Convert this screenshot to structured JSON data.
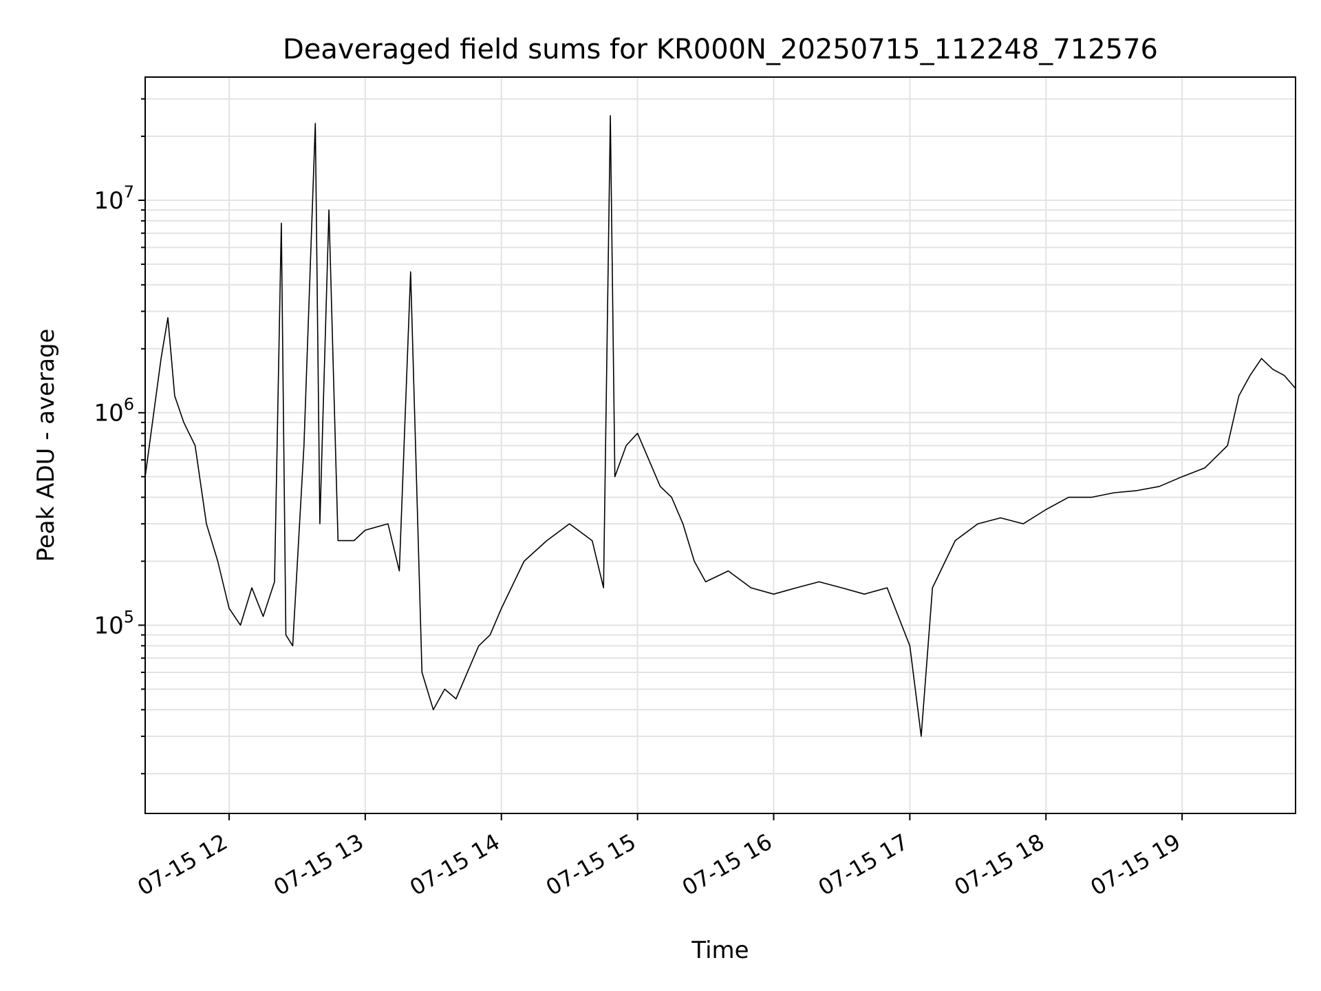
{
  "chart_data": {
    "type": "line",
    "title": "Deaveraged field sums for KR000N_20250715_112248_712576",
    "xlabel": "Time",
    "ylabel": "Peak ADU - average",
    "x_ticks": [
      "07-15 12",
      "07-15 13",
      "07-15 14",
      "07-15 15",
      "07-15 16",
      "07-15 17",
      "07-15 18",
      "07-15 19"
    ],
    "y_ticks": [
      {
        "base": "10",
        "exp": "5",
        "value": 100000
      },
      {
        "base": "10",
        "exp": "6",
        "value": 1000000
      },
      {
        "base": "10",
        "exp": "7",
        "value": 10000000
      }
    ],
    "xlim": [
      "2025-07-15 11:23",
      "2025-07-15 19:50"
    ],
    "ylim": [
      13000,
      38000000
    ],
    "yscale": "log",
    "grid": true,
    "line_color": "#000000",
    "series": [
      {
        "x": [
          "2025-07-15 11:23",
          "2025-07-15 11:30",
          "2025-07-15 11:33",
          "2025-07-15 11:36",
          "2025-07-15 11:40",
          "2025-07-15 11:45",
          "2025-07-15 11:50",
          "2025-07-15 11:55",
          "2025-07-15 12:00",
          "2025-07-15 12:05",
          "2025-07-15 12:10",
          "2025-07-15 12:15",
          "2025-07-15 12:20",
          "2025-07-15 12:23",
          "2025-07-15 12:25",
          "2025-07-15 12:28",
          "2025-07-15 12:33",
          "2025-07-15 12:38",
          "2025-07-15 12:40",
          "2025-07-15 12:44",
          "2025-07-15 12:48",
          "2025-07-15 12:55",
          "2025-07-15 13:00",
          "2025-07-15 13:10",
          "2025-07-15 13:15",
          "2025-07-15 13:20",
          "2025-07-15 13:25",
          "2025-07-15 13:30",
          "2025-07-15 13:35",
          "2025-07-15 13:40",
          "2025-07-15 13:45",
          "2025-07-15 13:50",
          "2025-07-15 13:55",
          "2025-07-15 14:00",
          "2025-07-15 14:10",
          "2025-07-15 14:20",
          "2025-07-15 14:30",
          "2025-07-15 14:40",
          "2025-07-15 14:45",
          "2025-07-15 14:48",
          "2025-07-15 14:50",
          "2025-07-15 14:55",
          "2025-07-15 15:00",
          "2025-07-15 15:05",
          "2025-07-15 15:10",
          "2025-07-15 15:15",
          "2025-07-15 15:20",
          "2025-07-15 15:25",
          "2025-07-15 15:30",
          "2025-07-15 15:40",
          "2025-07-15 15:50",
          "2025-07-15 16:00",
          "2025-07-15 16:10",
          "2025-07-15 16:20",
          "2025-07-15 16:30",
          "2025-07-15 16:40",
          "2025-07-15 16:50",
          "2025-07-15 17:00",
          "2025-07-15 17:05",
          "2025-07-15 17:10",
          "2025-07-15 17:20",
          "2025-07-15 17:30",
          "2025-07-15 17:40",
          "2025-07-15 17:50",
          "2025-07-15 18:00",
          "2025-07-15 18:10",
          "2025-07-15 18:20",
          "2025-07-15 18:30",
          "2025-07-15 18:40",
          "2025-07-15 18:50",
          "2025-07-15 19:00",
          "2025-07-15 19:10",
          "2025-07-15 19:20",
          "2025-07-15 19:25",
          "2025-07-15 19:30",
          "2025-07-15 19:35",
          "2025-07-15 19:40",
          "2025-07-15 19:45",
          "2025-07-15 19:50"
        ],
        "y": [
          500000,
          1800000,
          2800000,
          1200000,
          900000,
          700000,
          300000,
          200000,
          120000,
          100000,
          150000,
          110000,
          160000,
          7800000,
          90000,
          80000,
          700000,
          23000000,
          300000,
          9000000,
          250000,
          250000,
          280000,
          300000,
          180000,
          4600000,
          60000,
          40000,
          50000,
          45000,
          60000,
          80000,
          90000,
          120000,
          200000,
          250000,
          300000,
          250000,
          150000,
          25000000,
          500000,
          700000,
          800000,
          600000,
          450000,
          400000,
          300000,
          200000,
          160000,
          180000,
          150000,
          140000,
          150000,
          160000,
          150000,
          140000,
          150000,
          80000,
          30000,
          150000,
          250000,
          300000,
          320000,
          300000,
          350000,
          400000,
          400000,
          420000,
          430000,
          450000,
          500000,
          550000,
          700000,
          1200000,
          1500000,
          1800000,
          1600000,
          1500000,
          1300000
        ]
      }
    ]
  }
}
